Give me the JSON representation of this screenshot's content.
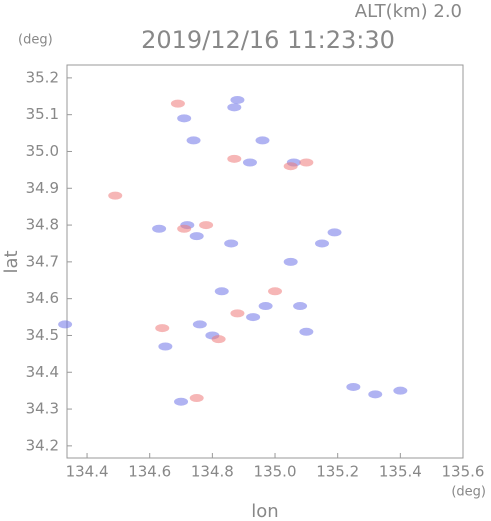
{
  "chart_data": {
    "type": "scatter",
    "title": "2019/12/16 11:23:30",
    "subtitle": "ALT(km) 2.0",
    "x_label": "lon",
    "y_label": "lat",
    "x_unit": "(deg)",
    "y_unit": "(deg)",
    "xlim": [
      134.336,
      135.6
    ],
    "ylim": [
      34.167,
      35.235
    ],
    "xticks": [
      134.4,
      134.6,
      134.8,
      {
        "value": 135,
        "label": "135.0"
      },
      135.2,
      135.4,
      135.6
    ],
    "yticks": [
      34.2,
      34.3,
      34.4,
      34.5,
      34.6,
      34.7,
      34.8,
      34.9,
      {
        "value": 35,
        "label": "35.0"
      },
      35.1,
      35.2
    ],
    "series": [
      {
        "color": "#6f74e8",
        "x": [
          134.33,
          134.7,
          134.71,
          134.74,
          134.87,
          134.88,
          134.96,
          135.06,
          134.92,
          134.63,
          134.75,
          134.72,
          134.86,
          135.05,
          134.83,
          134.97,
          135.08,
          134.8,
          134.93,
          135.1,
          134.65,
          135.25,
          135.32,
          135.4,
          135.19,
          135.15,
          134.76
        ],
        "values": [
          34.53,
          34.32,
          35.09,
          35.03,
          35.12,
          35.14,
          35.03,
          34.97,
          34.97,
          34.79,
          34.77,
          34.8,
          34.75,
          34.7,
          34.62,
          34.58,
          34.58,
          34.5,
          34.55,
          34.51,
          34.47,
          34.36,
          34.34,
          34.35,
          34.78,
          34.75,
          34.53
        ]
      },
      {
        "color": "#ee7a7a",
        "x": [
          134.49,
          134.78,
          134.71,
          134.87,
          135.1,
          134.82,
          134.75,
          135.05,
          134.88,
          134.64,
          134.69,
          135.0
        ],
        "values": [
          34.88,
          34.8,
          34.79,
          34.98,
          34.97,
          34.49,
          34.33,
          34.96,
          34.56,
          34.52,
          35.13,
          34.62
        ]
      }
    ]
  }
}
